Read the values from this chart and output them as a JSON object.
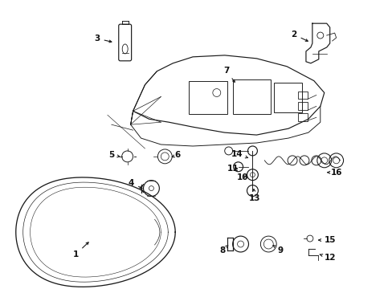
{
  "background_color": "#ffffff",
  "figsize": [
    4.89,
    3.6
  ],
  "dpi": 100,
  "line_color": "#1a1a1a",
  "label_color": "#111111",
  "label_fontsize": 7.5,
  "arrow_lw": 0.8
}
